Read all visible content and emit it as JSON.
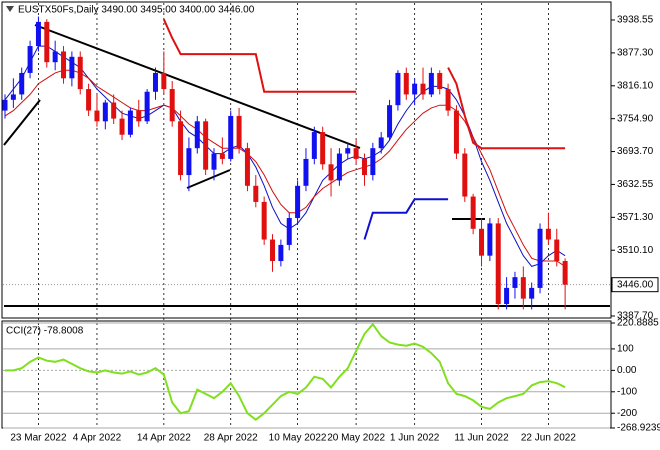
{
  "chart_data": [
    {
      "type": "candlestick",
      "title": "EUSTX50Fs,Daily  3490.00 3495.00 3400.00 3446.00",
      "categories": [
        null,
        null,
        null,
        null,
        "23 Mar 2022",
        null,
        null,
        null,
        null,
        null,
        null,
        "4 Apr 2022",
        null,
        null,
        null,
        null,
        null,
        null,
        null,
        "14 Apr 2022",
        null,
        null,
        null,
        null,
        null,
        null,
        null,
        "28 Apr 2022",
        null,
        null,
        null,
        null,
        null,
        null,
        null,
        "10 May 2022",
        null,
        null,
        null,
        null,
        null,
        null,
        "20 May 2022",
        null,
        null,
        null,
        null,
        null,
        null,
        "1 Jun 2022",
        null,
        null,
        null,
        null,
        null,
        null,
        null,
        "11 Jun 2022",
        null,
        null,
        null,
        null,
        null,
        null,
        null,
        "22 Jun 2022",
        null,
        null
      ],
      "open": [
        3770,
        3790,
        3800,
        3840,
        3890,
        3935,
        3860,
        3880,
        3830,
        3870,
        3810,
        3770,
        3750,
        3785,
        3755,
        3725,
        3770,
        3750,
        3805,
        3840,
        3810,
        3750,
        3650,
        3700,
        3750,
        3660,
        3690,
        3680,
        3760,
        3700,
        3630,
        3600,
        3530,
        3490,
        3520,
        3570,
        3630,
        3680,
        3730,
        3670,
        3640,
        3690,
        3700,
        3680,
        3650,
        3700,
        3720,
        3780,
        3840,
        3800,
        3820,
        3800,
        3840,
        3810,
        3770,
        3690,
        3610,
        3550,
        3500,
        3560,
        3410,
        3440,
        3460,
        3420,
        3440,
        3550,
        3530,
        3490
      ],
      "high": [
        3800,
        3830,
        3850,
        3900,
        3945,
        3940,
        3900,
        3890,
        3880,
        3880,
        3820,
        3800,
        3790,
        3800,
        3770,
        3775,
        3790,
        3810,
        3850,
        3880,
        3825,
        3770,
        3720,
        3760,
        3755,
        3700,
        3720,
        3770,
        3775,
        3710,
        3650,
        3610,
        3540,
        3530,
        3580,
        3640,
        3700,
        3740,
        3740,
        3700,
        3700,
        3710,
        3715,
        3690,
        3710,
        3730,
        3790,
        3845,
        3850,
        3830,
        3850,
        3850,
        3845,
        3820,
        3780,
        3700,
        3615,
        3570,
        3570,
        3570,
        3460,
        3470,
        3480,
        3450,
        3560,
        3580,
        3550,
        3495
      ],
      "low": [
        3755,
        3775,
        3790,
        3830,
        3880,
        3850,
        3845,
        3820,
        3815,
        3800,
        3760,
        3740,
        3735,
        3745,
        3715,
        3720,
        3740,
        3745,
        3790,
        3800,
        3740,
        3640,
        3620,
        3690,
        3650,
        3640,
        3670,
        3675,
        3690,
        3620,
        3590,
        3520,
        3470,
        3480,
        3510,
        3560,
        3620,
        3670,
        3660,
        3610,
        3630,
        3680,
        3670,
        3630,
        3640,
        3690,
        3715,
        3770,
        3790,
        3780,
        3790,
        3795,
        3800,
        3760,
        3680,
        3600,
        3540,
        3480,
        3490,
        3400,
        3400,
        3420,
        3400,
        3400,
        3430,
        3520,
        3480,
        3400
      ],
      "close": [
        3790,
        3800,
        3840,
        3890,
        3935,
        3860,
        3880,
        3830,
        3870,
        3810,
        3770,
        3750,
        3785,
        3755,
        3725,
        3770,
        3750,
        3805,
        3840,
        3810,
        3750,
        3650,
        3700,
        3750,
        3660,
        3690,
        3680,
        3760,
        3700,
        3630,
        3600,
        3530,
        3490,
        3520,
        3570,
        3630,
        3680,
        3730,
        3670,
        3640,
        3690,
        3700,
        3680,
        3650,
        3700,
        3720,
        3780,
        3840,
        3800,
        3820,
        3800,
        3840,
        3810,
        3770,
        3690,
        3610,
        3550,
        3500,
        3560,
        3410,
        3440,
        3460,
        3420,
        3440,
        3550,
        3530,
        3490,
        3446
      ],
      "up_color": "#1010f0",
      "down_color": "#e01010",
      "overlays": [
        {
          "color": "#1010c0",
          "width": 1,
          "values": [
            3790,
            3810,
            3830,
            3860,
            3890,
            3890,
            3880,
            3870,
            3860,
            3850,
            3830,
            3810,
            3795,
            3780,
            3765,
            3760,
            3755,
            3760,
            3770,
            3780,
            3775,
            3750,
            3730,
            3720,
            3705,
            3690,
            3690,
            3700,
            3705,
            3690,
            3665,
            3630,
            3590,
            3560,
            3550,
            3560,
            3580,
            3610,
            3640,
            3655,
            3670,
            3680,
            3685,
            3680,
            3685,
            3695,
            3715,
            3745,
            3770,
            3790,
            3805,
            3815,
            3815,
            3810,
            3790,
            3760,
            3720,
            3675,
            3640,
            3600,
            3560,
            3530,
            3500,
            3480,
            3485,
            3500,
            3510,
            3500
          ]
        },
        {
          "color": "#d01010",
          "width": 1,
          "values": [
            3760,
            3770,
            3785,
            3800,
            3820,
            3830,
            3840,
            3845,
            3845,
            3840,
            3830,
            3815,
            3805,
            3795,
            3785,
            3775,
            3770,
            3770,
            3775,
            3780,
            3775,
            3760,
            3745,
            3735,
            3720,
            3710,
            3700,
            3700,
            3700,
            3690,
            3675,
            3650,
            3620,
            3595,
            3580,
            3580,
            3590,
            3610,
            3625,
            3635,
            3645,
            3655,
            3660,
            3665,
            3670,
            3680,
            3695,
            3715,
            3735,
            3750,
            3765,
            3775,
            3780,
            3780,
            3770,
            3750,
            3720,
            3690,
            3660,
            3620,
            3580,
            3550,
            3520,
            3495,
            3490,
            3490,
            3490,
            3480
          ]
        },
        {
          "color": "#e01010",
          "width": 2,
          "values": [
            null,
            null,
            null,
            null,
            null,
            null,
            null,
            null,
            null,
            null,
            null,
            null,
            null,
            null,
            null,
            null,
            null,
            null,
            null,
            3940,
            3905,
            3875,
            3875,
            3875,
            3875,
            3875,
            3875,
            3875,
            3875,
            3875,
            3875,
            3805,
            3805,
            3805,
            3805,
            3805,
            3805,
            3805,
            3805,
            3805,
            3805,
            3805,
            3805,
            null,
            null,
            null,
            null,
            null,
            null,
            null,
            null,
            null,
            null,
            3850,
            3820,
            3760,
            3710,
            3700,
            3700,
            3700,
            3700,
            3700,
            3700,
            3700,
            3700,
            3700,
            3700,
            3700
          ]
        },
        {
          "color": "#1010d0",
          "width": 2,
          "values": [
            null,
            null,
            null,
            null,
            null,
            null,
            null,
            null,
            null,
            null,
            null,
            null,
            null,
            null,
            null,
            null,
            null,
            null,
            null,
            null,
            null,
            null,
            null,
            null,
            null,
            null,
            null,
            null,
            null,
            null,
            null,
            null,
            null,
            null,
            null,
            null,
            null,
            null,
            null,
            null,
            null,
            null,
            null,
            3530,
            3580,
            3580,
            3580,
            3580,
            3580,
            3605,
            3605,
            3605,
            3605,
            3605,
            null,
            null,
            null,
            null,
            null,
            null,
            null,
            null,
            null,
            null,
            null,
            null,
            null,
            null
          ]
        }
      ],
      "current_price": {
        "value": 3446,
        "label": "3446.00"
      },
      "ylim": [
        3384,
        3972
      ],
      "yticks": [
        3938.55,
        {
          "value": 3877.3,
          "label": "3877.30"
        },
        {
          "value": 3816.1,
          "label": "3816.10"
        },
        {
          "value": 3754.9,
          "label": "3754.90"
        },
        {
          "value": 3693.7,
          "label": "3693.70"
        },
        3632.55,
        {
          "value": 3571.3,
          "label": "3571.30"
        },
        {
          "value": 3510.1,
          "label": "3510.10"
        },
        {
          "value": 3387.7,
          "label": "3387.70"
        }
      ],
      "grid": false
    },
    {
      "type": "line",
      "title": "CCI(27) -78.8008",
      "color": "#80e020",
      "values": [
        0,
        0,
        10,
        40,
        60,
        45,
        40,
        50,
        30,
        10,
        -5,
        -10,
        0,
        -10,
        -15,
        -5,
        -20,
        -10,
        10,
        -20,
        -150,
        -200,
        -190,
        -90,
        -110,
        -130,
        -100,
        -60,
        -120,
        -200,
        -230,
        -200,
        -160,
        -120,
        -100,
        -110,
        -80,
        -30,
        -40,
        -80,
        -30,
        10,
        90,
        170,
        215,
        160,
        130,
        120,
        115,
        125,
        110,
        80,
        40,
        -60,
        -110,
        -120,
        -140,
        -170,
        -180,
        -150,
        -130,
        -120,
        -110,
        -70,
        -55,
        -50,
        -60,
        -78.8008
      ],
      "ylim": [
        -268.9239,
        220.8885
      ],
      "yticks": [
        220.8885,
        100,
        {
          "value": 0,
          "label": "0.00"
        },
        -100,
        -200,
        -268.9239
      ],
      "grid": true
    }
  ]
}
